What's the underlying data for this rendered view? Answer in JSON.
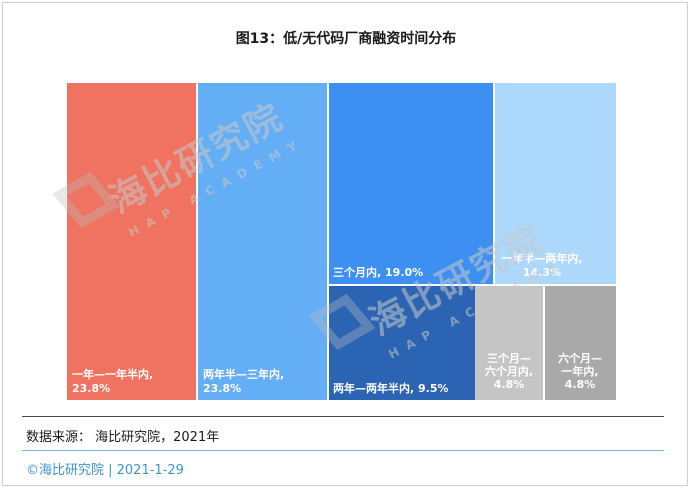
{
  "title": "图13：低/无代码厂商融资时间分布",
  "chart_data": {
    "type": "treemap",
    "title": "图13：低/无代码厂商融资时间分布",
    "items": [
      {
        "label": "一年—一年半内,",
        "value_text": "23.8%",
        "value": 23.8,
        "color": "#ef7360"
      },
      {
        "label": "两年半—三年内,",
        "value_text": "23.8%",
        "value": 23.8,
        "color": "#64aef6"
      },
      {
        "label": "三个月内,",
        "value_text": "19.0%",
        "value": 19.0,
        "color": "#3d8ff2"
      },
      {
        "label": "两年—两年半内,",
        "value_text": "9.5%",
        "value": 9.5,
        "color": "#2c64b4"
      },
      {
        "label": "一年半—两年内,",
        "value_text": "14.3%",
        "value": 14.3,
        "color": "#acd8fb"
      },
      {
        "label": "三个月—六个月内,",
        "value_text": "4.8%",
        "value": 4.8,
        "color": "#c5c5c5"
      },
      {
        "label": "六个月—一年内,",
        "value_text": "4.8%",
        "value": 4.8,
        "color": "#a9a9a9"
      }
    ]
  },
  "watermark": {
    "cn": "海比研究院",
    "en": "HAP ACADEMY"
  },
  "source": "数据来源： 海比研究院，2021年",
  "footer": "©海比研究院 | 2021-1-29"
}
